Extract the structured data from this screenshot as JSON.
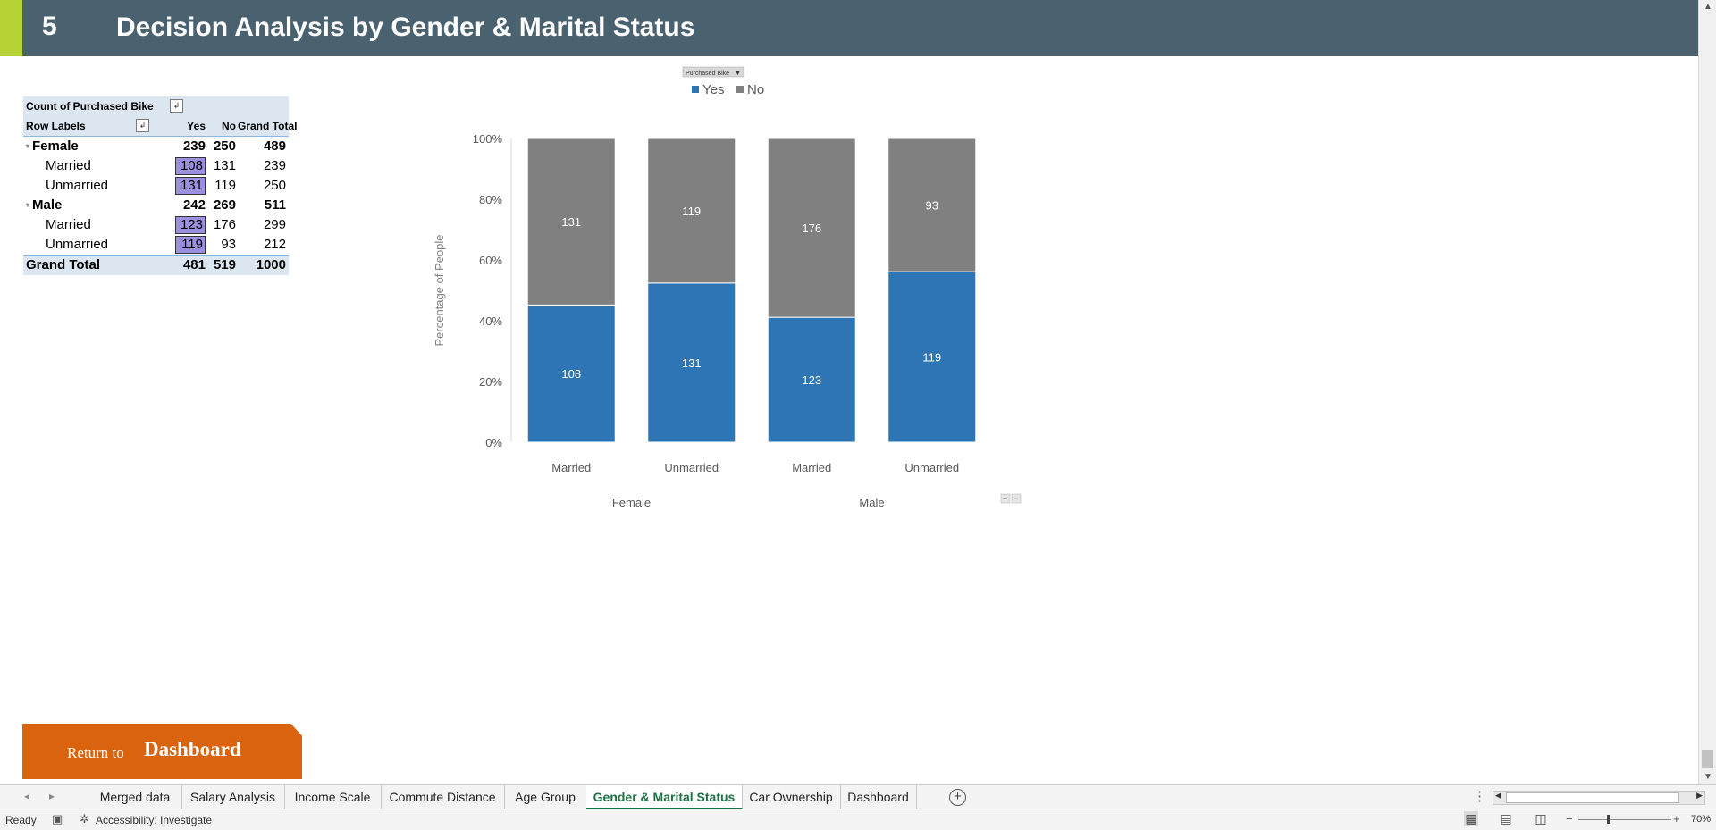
{
  "banner": {
    "number": "5",
    "title": "Decision Analysis by Gender & Marital Status"
  },
  "pivot": {
    "header1": "Count of Purchased Bike",
    "header2": {
      "row_labels": "Row Labels",
      "yes": "Yes",
      "no": "No",
      "grand_total": "Grand Total"
    },
    "rows": [
      {
        "label": "Female",
        "yes": "239",
        "no": "250",
        "total": "489"
      },
      {
        "label": "Married",
        "yes": "108",
        "no": "131",
        "total": "239"
      },
      {
        "label": "Unmarried",
        "yes": "131",
        "no": "119",
        "total": "250"
      },
      {
        "label": "Male",
        "yes": "242",
        "no": "269",
        "total": "511"
      },
      {
        "label": "Married",
        "yes": "123",
        "no": "176",
        "total": "299"
      },
      {
        "label": "Unmarried",
        "yes": "119",
        "no": "93",
        "total": "212"
      }
    ],
    "grand_total": {
      "label": "Grand Total",
      "yes": "481",
      "no": "519",
      "total": "1000"
    },
    "selection_color": "#9b8fe0"
  },
  "chart_data": {
    "type": "bar",
    "stacked": "percent",
    "field_button": "Purchased Bike",
    "categories": [
      "Married",
      "Unmarried",
      "Married",
      "Unmarried"
    ],
    "groups": [
      {
        "name": "Female",
        "categories": [
          "Married",
          "Unmarried"
        ]
      },
      {
        "name": "Male",
        "categories": [
          "Married",
          "Unmarried"
        ]
      }
    ],
    "series": [
      {
        "name": "Yes",
        "color": "#2e75b6",
        "values": [
          108,
          131,
          123,
          119
        ]
      },
      {
        "name": "No",
        "color": "#808080",
        "values": [
          131,
          119,
          176,
          93
        ]
      }
    ],
    "ylabel": "Percentage of People",
    "xlabel": "",
    "ylim": [
      0,
      100
    ],
    "yticks": [
      "0%",
      "20%",
      "40%",
      "60%",
      "80%",
      "100%"
    ],
    "legend_position": "top",
    "grid": false,
    "data_labels": true
  },
  "return_button": {
    "prefix": "Return  to",
    "label": "Dashboard",
    "color": "#d9630e"
  },
  "sheet_tabs": [
    {
      "label": "Merged data",
      "active": false
    },
    {
      "label": "Salary Analysis",
      "active": false
    },
    {
      "label": "Income Scale",
      "active": false
    },
    {
      "label": "Commute Distance",
      "active": false
    },
    {
      "label": "Age Group",
      "active": false
    },
    {
      "label": "Gender & Marital Status",
      "active": true
    },
    {
      "label": "Car Ownership",
      "active": false
    },
    {
      "label": "Dashboard",
      "active": false
    }
  ],
  "status": {
    "ready": "Ready",
    "accessibility": "Accessibility: Investigate",
    "zoom": "70%"
  },
  "icons": {
    "add_sheet": "plus-circle-icon",
    "normal_view": "grid-icon",
    "page_layout": "page-layout-icon",
    "page_break": "page-break-icon"
  }
}
